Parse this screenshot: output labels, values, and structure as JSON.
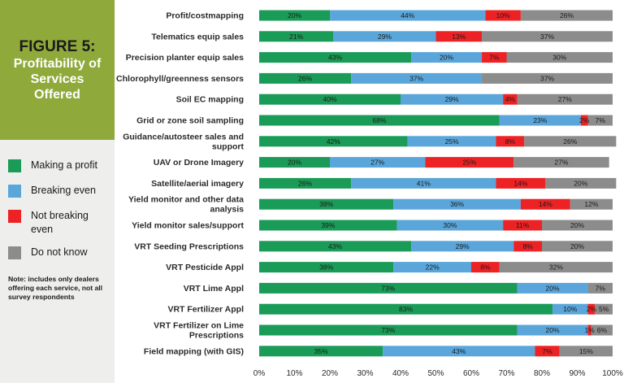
{
  "figure": {
    "label": "FIGURE 5:",
    "title": "Profitability of Services Offered"
  },
  "legend": [
    {
      "label": "Making a profit",
      "color": "#1a9b57"
    },
    {
      "label": "Breaking even",
      "color": "#5aa6da"
    },
    {
      "label": "Not breaking even",
      "color": "#ed2224"
    },
    {
      "label": "Do not know",
      "color": "#8c8c8c"
    }
  ],
  "note": "Note: includes only dealers offering each service, not all survey respondents",
  "chart_data": {
    "type": "bar",
    "orientation": "horizontal",
    "stacked": true,
    "xlim": [
      0,
      100
    ],
    "x_ticks": [
      "0%",
      "10%",
      "20%",
      "30%",
      "40%",
      "50%",
      "60%",
      "70%",
      "80%",
      "90%",
      "100%"
    ],
    "grid": false,
    "categories": [
      [
        "Profit/costmapping"
      ],
      [
        "Telematics equip sales"
      ],
      [
        "Precision planter equip sales"
      ],
      [
        "Chlorophyll/greenness sensors"
      ],
      [
        "Soil EC mapping"
      ],
      [
        "Grid or zone soil sampling"
      ],
      [
        "Guidance/autosteer sales and",
        "support"
      ],
      [
        "UAV or Drone Imagery"
      ],
      [
        "Satellite/aerial imagery"
      ],
      [
        "Yield monitor and other data",
        "analysis"
      ],
      [
        "Yield monitor sales/support"
      ],
      [
        "VRT Seeding Prescriptions"
      ],
      [
        "VRT Pesticide Appl"
      ],
      [
        "VRT Lime Appl"
      ],
      [
        "VRT Fertilizer Appl"
      ],
      [
        "VRT Fertilizer on Lime",
        "Prescriptions"
      ],
      [
        "Field mapping (with GIS)"
      ]
    ],
    "series": [
      {
        "name": "Making a profit",
        "color": "#1a9b57",
        "values": [
          20,
          21,
          43,
          26,
          40,
          68,
          42,
          20,
          26,
          38,
          39,
          43,
          38,
          73,
          83,
          73,
          35
        ]
      },
      {
        "name": "Breaking even",
        "color": "#5aa6da",
        "values": [
          44,
          29,
          20,
          37,
          29,
          23,
          25,
          27,
          41,
          36,
          30,
          29,
          22,
          20,
          10,
          20,
          43
        ]
      },
      {
        "name": "Not breaking even",
        "color": "#ed2224",
        "values": [
          10,
          13,
          7,
          0,
          4,
          2,
          8,
          25,
          14,
          14,
          11,
          8,
          8,
          0,
          2,
          1,
          7
        ]
      },
      {
        "name": "Do not know",
        "color": "#8c8c8c",
        "values": [
          26,
          37,
          30,
          37,
          27,
          7,
          26,
          27,
          20,
          12,
          20,
          20,
          32,
          7,
          5,
          6,
          15
        ]
      }
    ],
    "value_labels": [
      [
        "20%",
        "44%",
        "10%",
        "26%"
      ],
      [
        "21%",
        "29%",
        "13%",
        "37%"
      ],
      [
        "43%",
        "20%",
        "7%",
        "30%"
      ],
      [
        "26%",
        "37%",
        "",
        "37%"
      ],
      [
        "40%",
        "29%",
        "4%",
        "27%"
      ],
      [
        "68%",
        "23%",
        "2%",
        "7%"
      ],
      [
        "42%",
        "25%",
        "8%",
        "26%"
      ],
      [
        "20%",
        "27%",
        "25%",
        "27%"
      ],
      [
        "26%",
        "41%",
        "14%",
        "20%"
      ],
      [
        "38%",
        "36%",
        "14%",
        "12%"
      ],
      [
        "39%",
        "30%",
        "11%",
        "20%"
      ],
      [
        "43%",
        "29%",
        "8%",
        "20%"
      ],
      [
        "38%",
        "22%",
        "8%",
        "32%"
      ],
      [
        "73%",
        "20%",
        "",
        "7%"
      ],
      [
        "83%",
        "10%",
        "2%",
        "5%"
      ],
      [
        "73%",
        "20%",
        "1%",
        "6%"
      ],
      [
        "35%",
        "43%",
        "7%",
        "15%"
      ]
    ]
  }
}
